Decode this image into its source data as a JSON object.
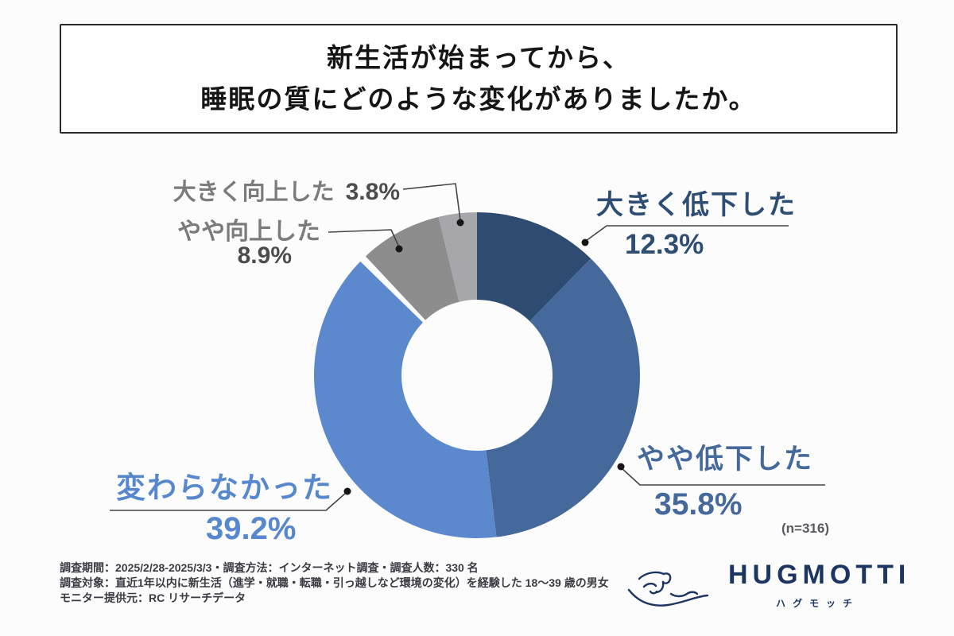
{
  "title": {
    "line1": "新生活が始まってから、",
    "line2": "睡眠の質にどのような変化がありましたか。"
  },
  "chart_data": {
    "type": "pie",
    "donut": true,
    "start_angle_deg": 0,
    "clockwise": true,
    "title": "新生活が始まってから、睡眠の質にどのような変化がありましたか。",
    "n_label": "(n=316)",
    "segments": [
      {
        "label": "大きく低下した",
        "value": 12.3,
        "value_label": "12.3%",
        "color": "#2e4c71"
      },
      {
        "label": "やや低下した",
        "value": 35.8,
        "value_label": "35.8%",
        "color": "#45699b"
      },
      {
        "label": "変わらなかった",
        "value": 39.2,
        "value_label": "39.2%",
        "color": "#5c88ce"
      },
      {
        "label": "やや向上した",
        "value": 8.9,
        "value_label": "8.9%",
        "color": "#8d8d8d"
      },
      {
        "label": "大きく向上した",
        "value": 3.8,
        "value_label": "3.8%",
        "color": "#a7a7ab"
      }
    ]
  },
  "footer": {
    "lines": [
      "調査期間：2025/2/28-2025/3/3・調査方法：インターネット調査・調査人数：330 名",
      "調査対象：直近1年以内に新生活（進学・就職・転職・引っ越しなど環境の変化）を経験した 18～39 歳の男女",
      "モニター提供元：RC リサーチデータ"
    ]
  },
  "logo": {
    "name": "HUGMOTTI",
    "subtitle": "ハグモッチ",
    "color": "#1d3561"
  }
}
